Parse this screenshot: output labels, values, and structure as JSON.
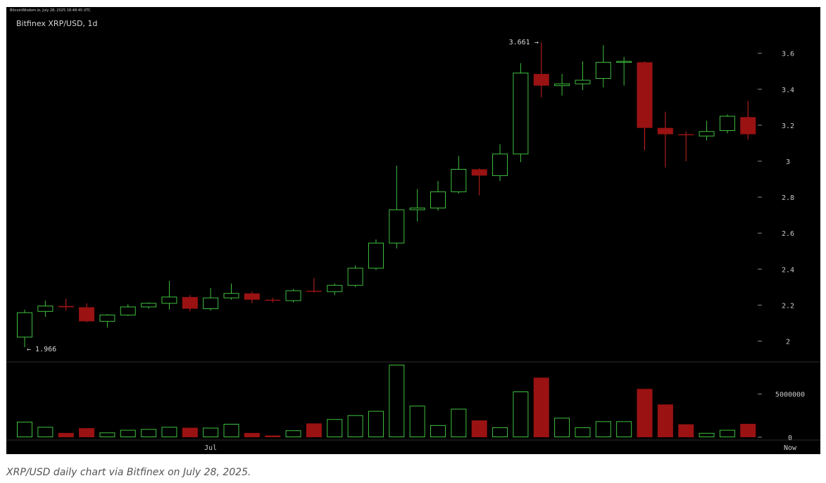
{
  "header": {
    "watermark": "BitcoinWisdom.io, July 28, 2025 18:48:45 UTC"
  },
  "caption": "XRP/USD daily chart via Bitfinex on July 28, 2025.",
  "chart_data": {
    "type": "candlestick",
    "title": "Bitfinex XRP/USD, 1d",
    "x_tick_labels": [
      "Jul",
      "Now"
    ],
    "price_axis": {
      "ticks": [
        "2",
        "2.2",
        "2.4",
        "2.6",
        "2.8",
        "3",
        "3.2",
        "3.4",
        "3.6"
      ],
      "range": [
        1.9,
        3.72
      ]
    },
    "volume_axis": {
      "ticks": [
        "0",
        "5000000"
      ],
      "range": [
        0,
        8400000
      ]
    },
    "annotations": {
      "high_label": "3.661 →",
      "low_label": "← 1.966"
    },
    "colors": {
      "up": "#3fbf3f",
      "down": "#9a1212",
      "down_wick": "#cc2222",
      "axis_text": "#c8c8c8",
      "background": "#000000"
    },
    "candles": [
      {
        "o": 2.022,
        "h": 2.175,
        "l": 1.966,
        "c": 2.158,
        "v": 1800000
      },
      {
        "o": 2.165,
        "h": 2.225,
        "l": 2.135,
        "c": 2.195,
        "v": 1200000
      },
      {
        "o": 2.195,
        "h": 2.235,
        "l": 2.17,
        "c": 2.188,
        "v": 500000
      },
      {
        "o": 2.188,
        "h": 2.21,
        "l": 2.105,
        "c": 2.11,
        "v": 1050000
      },
      {
        "o": 2.11,
        "h": 2.15,
        "l": 2.075,
        "c": 2.145,
        "v": 550000
      },
      {
        "o": 2.145,
        "h": 2.205,
        "l": 2.14,
        "c": 2.19,
        "v": 850000
      },
      {
        "o": 2.19,
        "h": 2.215,
        "l": 2.18,
        "c": 2.21,
        "v": 950000
      },
      {
        "o": 2.21,
        "h": 2.335,
        "l": 2.175,
        "c": 2.245,
        "v": 1200000
      },
      {
        "o": 2.245,
        "h": 2.255,
        "l": 2.165,
        "c": 2.18,
        "v": 1100000
      },
      {
        "o": 2.18,
        "h": 2.295,
        "l": 2.17,
        "c": 2.24,
        "v": 1100000
      },
      {
        "o": 2.24,
        "h": 2.32,
        "l": 2.23,
        "c": 2.265,
        "v": 1550000
      },
      {
        "o": 2.265,
        "h": 2.275,
        "l": 2.21,
        "c": 2.23,
        "v": 500000
      },
      {
        "o": 2.23,
        "h": 2.24,
        "l": 2.215,
        "c": 2.225,
        "v": 200000
      },
      {
        "o": 2.225,
        "h": 2.29,
        "l": 2.215,
        "c": 2.28,
        "v": 800000
      },
      {
        "o": 2.28,
        "h": 2.35,
        "l": 2.27,
        "c": 2.275,
        "v": 1600000
      },
      {
        "o": 2.275,
        "h": 2.32,
        "l": 2.255,
        "c": 2.31,
        "v": 2100000
      },
      {
        "o": 2.31,
        "h": 2.42,
        "l": 2.3,
        "c": 2.405,
        "v": 2550000
      },
      {
        "o": 2.405,
        "h": 2.565,
        "l": 2.395,
        "c": 2.545,
        "v": 3050000
      },
      {
        "o": 2.545,
        "h": 2.975,
        "l": 2.515,
        "c": 2.73,
        "v": 8400000
      },
      {
        "o": 2.73,
        "h": 2.845,
        "l": 2.665,
        "c": 2.74,
        "v": 3650000
      },
      {
        "o": 2.74,
        "h": 2.89,
        "l": 2.725,
        "c": 2.83,
        "v": 1400000
      },
      {
        "o": 2.83,
        "h": 3.03,
        "l": 2.82,
        "c": 2.955,
        "v": 3300000
      },
      {
        "o": 2.955,
        "h": 2.96,
        "l": 2.81,
        "c": 2.92,
        "v": 1950000
      },
      {
        "o": 2.92,
        "h": 3.095,
        "l": 2.89,
        "c": 3.04,
        "v": 1150000
      },
      {
        "o": 3.04,
        "h": 3.545,
        "l": 2.995,
        "c": 3.49,
        "v": 5300000
      },
      {
        "o": 3.485,
        "h": 3.661,
        "l": 3.355,
        "c": 3.42,
        "v": 6900000
      },
      {
        "o": 3.42,
        "h": 3.485,
        "l": 3.365,
        "c": 3.43,
        "v": 2250000
      },
      {
        "o": 3.43,
        "h": 3.555,
        "l": 3.395,
        "c": 3.45,
        "v": 1150000
      },
      {
        "o": 3.46,
        "h": 3.645,
        "l": 3.41,
        "c": 3.55,
        "v": 1850000
      },
      {
        "o": 3.55,
        "h": 3.58,
        "l": 3.42,
        "c": 3.555,
        "v": 1850000
      },
      {
        "o": 3.55,
        "h": 3.555,
        "l": 3.06,
        "c": 3.185,
        "v": 5600000
      },
      {
        "o": 3.185,
        "h": 3.275,
        "l": 2.965,
        "c": 3.15,
        "v": 3800000
      },
      {
        "o": 3.15,
        "h": 3.165,
        "l": 3.0,
        "c": 3.145,
        "v": 1500000
      },
      {
        "o": 3.14,
        "h": 3.225,
        "l": 3.115,
        "c": 3.165,
        "v": 500000
      },
      {
        "o": 3.17,
        "h": 3.26,
        "l": 3.155,
        "c": 3.25,
        "v": 850000
      },
      {
        "o": 3.245,
        "h": 3.335,
        "l": 3.12,
        "c": 3.15,
        "v": 1550000
      }
    ]
  }
}
